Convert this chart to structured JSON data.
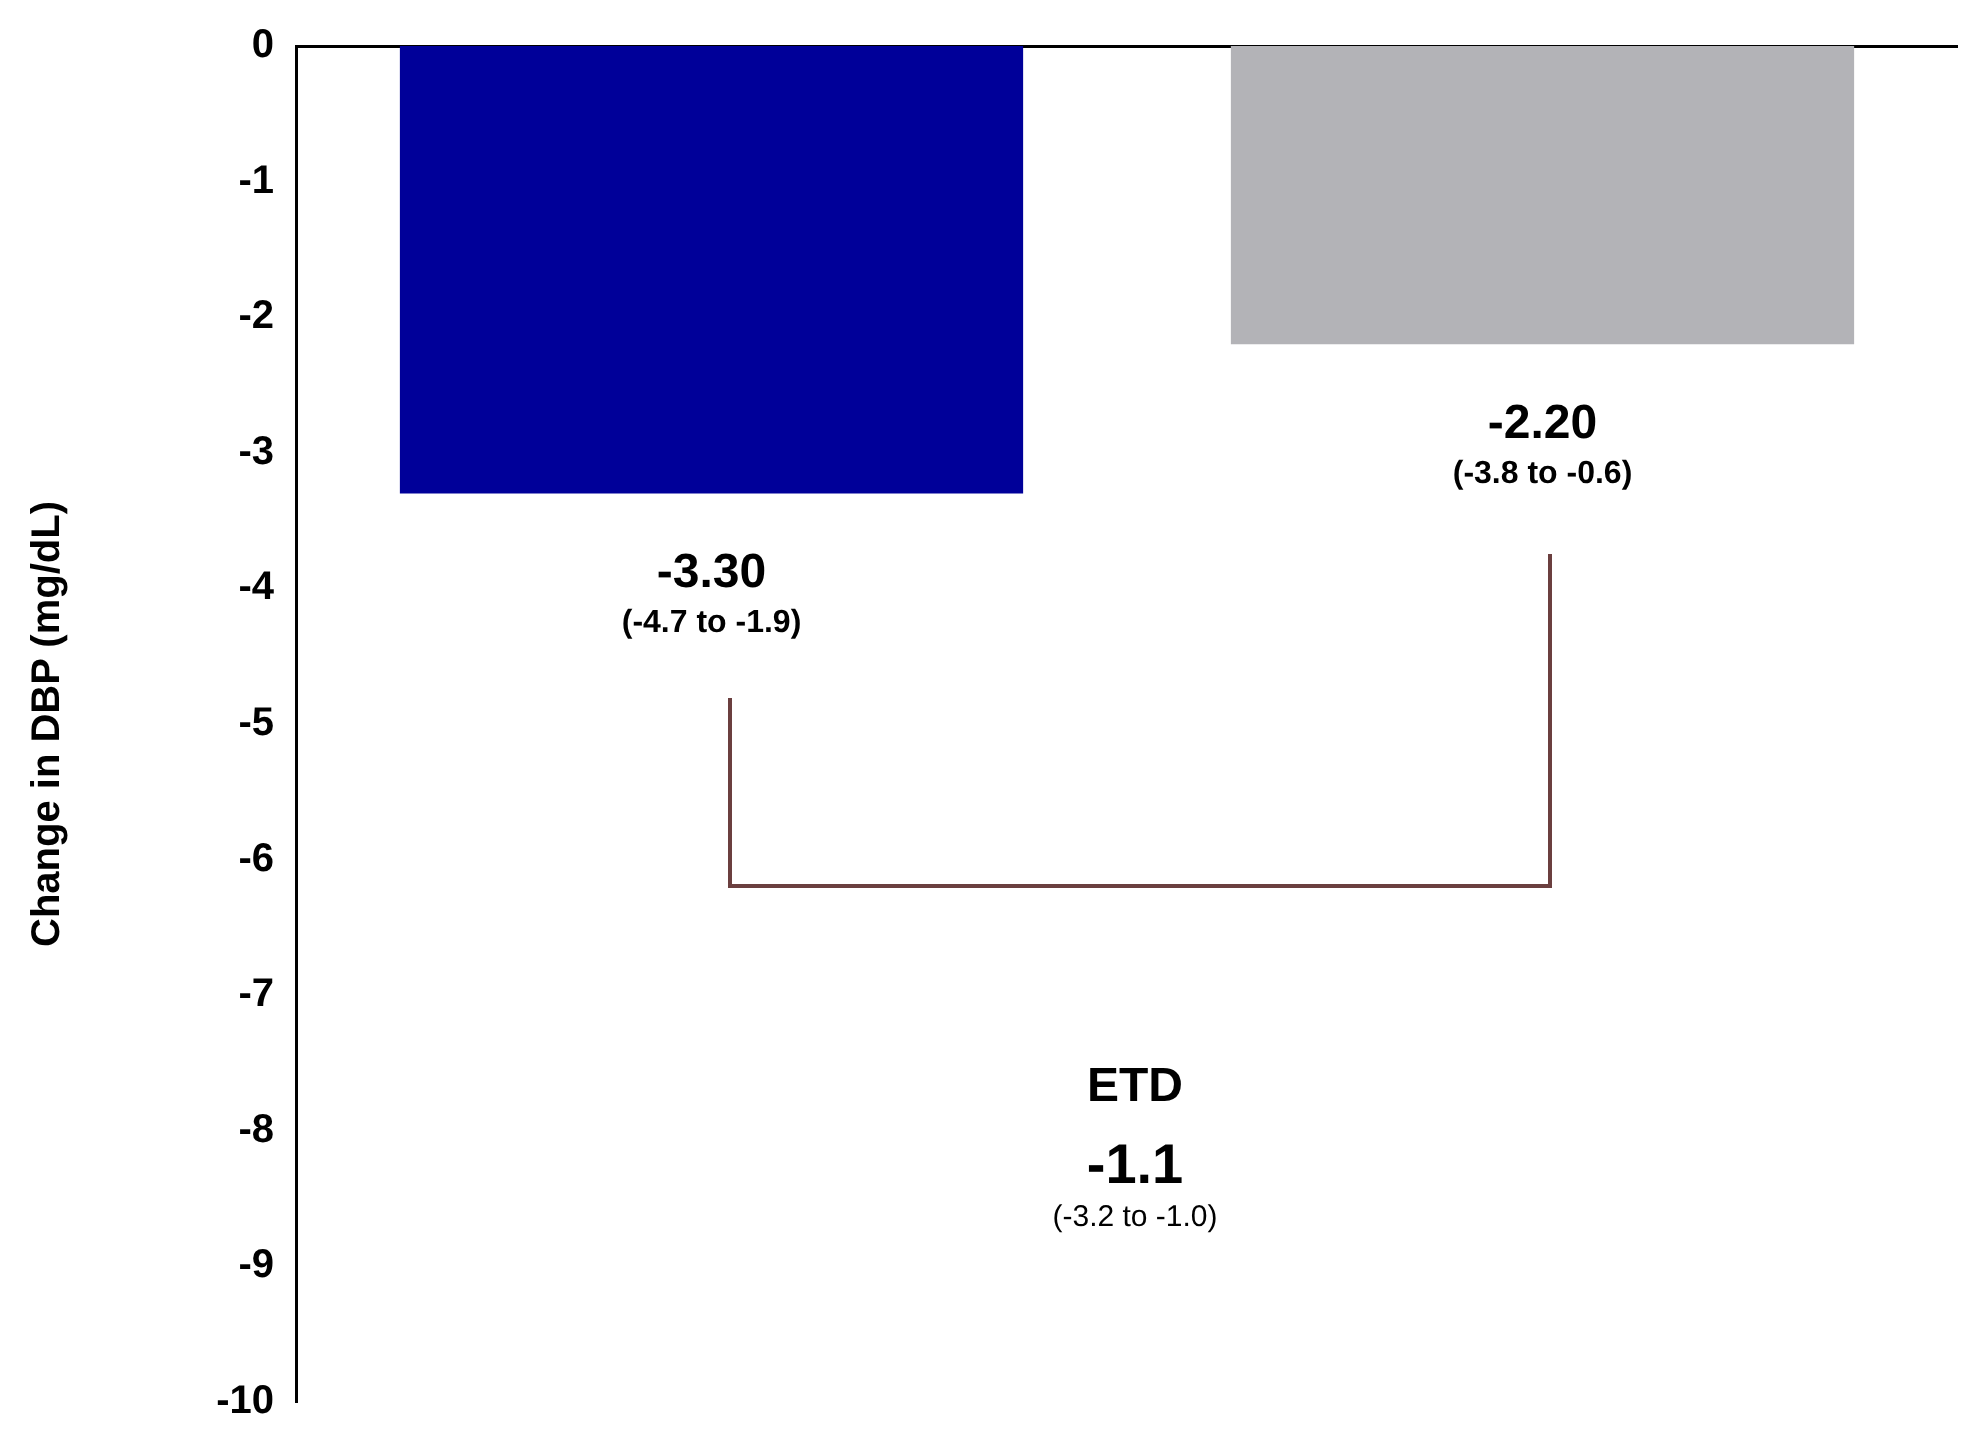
{
  "chart_data": {
    "type": "bar",
    "ylabel": "Change in DBP (mg/dL)",
    "categories": [
      null,
      null
    ],
    "values": [
      -3.3,
      -2.2
    ],
    "colors": [
      "#000099",
      "#b3b3b7"
    ],
    "value_labels": [
      "-3.30",
      "-2.20"
    ],
    "annotations": [
      "(-4.7 to -1.9)",
      "(-3.8 to -0.6)",
      "ETD",
      "-1.1",
      "(-3.2 to -1.0)"
    ],
    "ylim": [
      -10,
      0
    ],
    "yticks": [
      0,
      -1,
      -2,
      -3,
      -4,
      -5,
      -6,
      -7,
      -8,
      -9,
      -10
    ],
    "tick_labels": "y",
    "grid": false,
    "legend": false
  }
}
